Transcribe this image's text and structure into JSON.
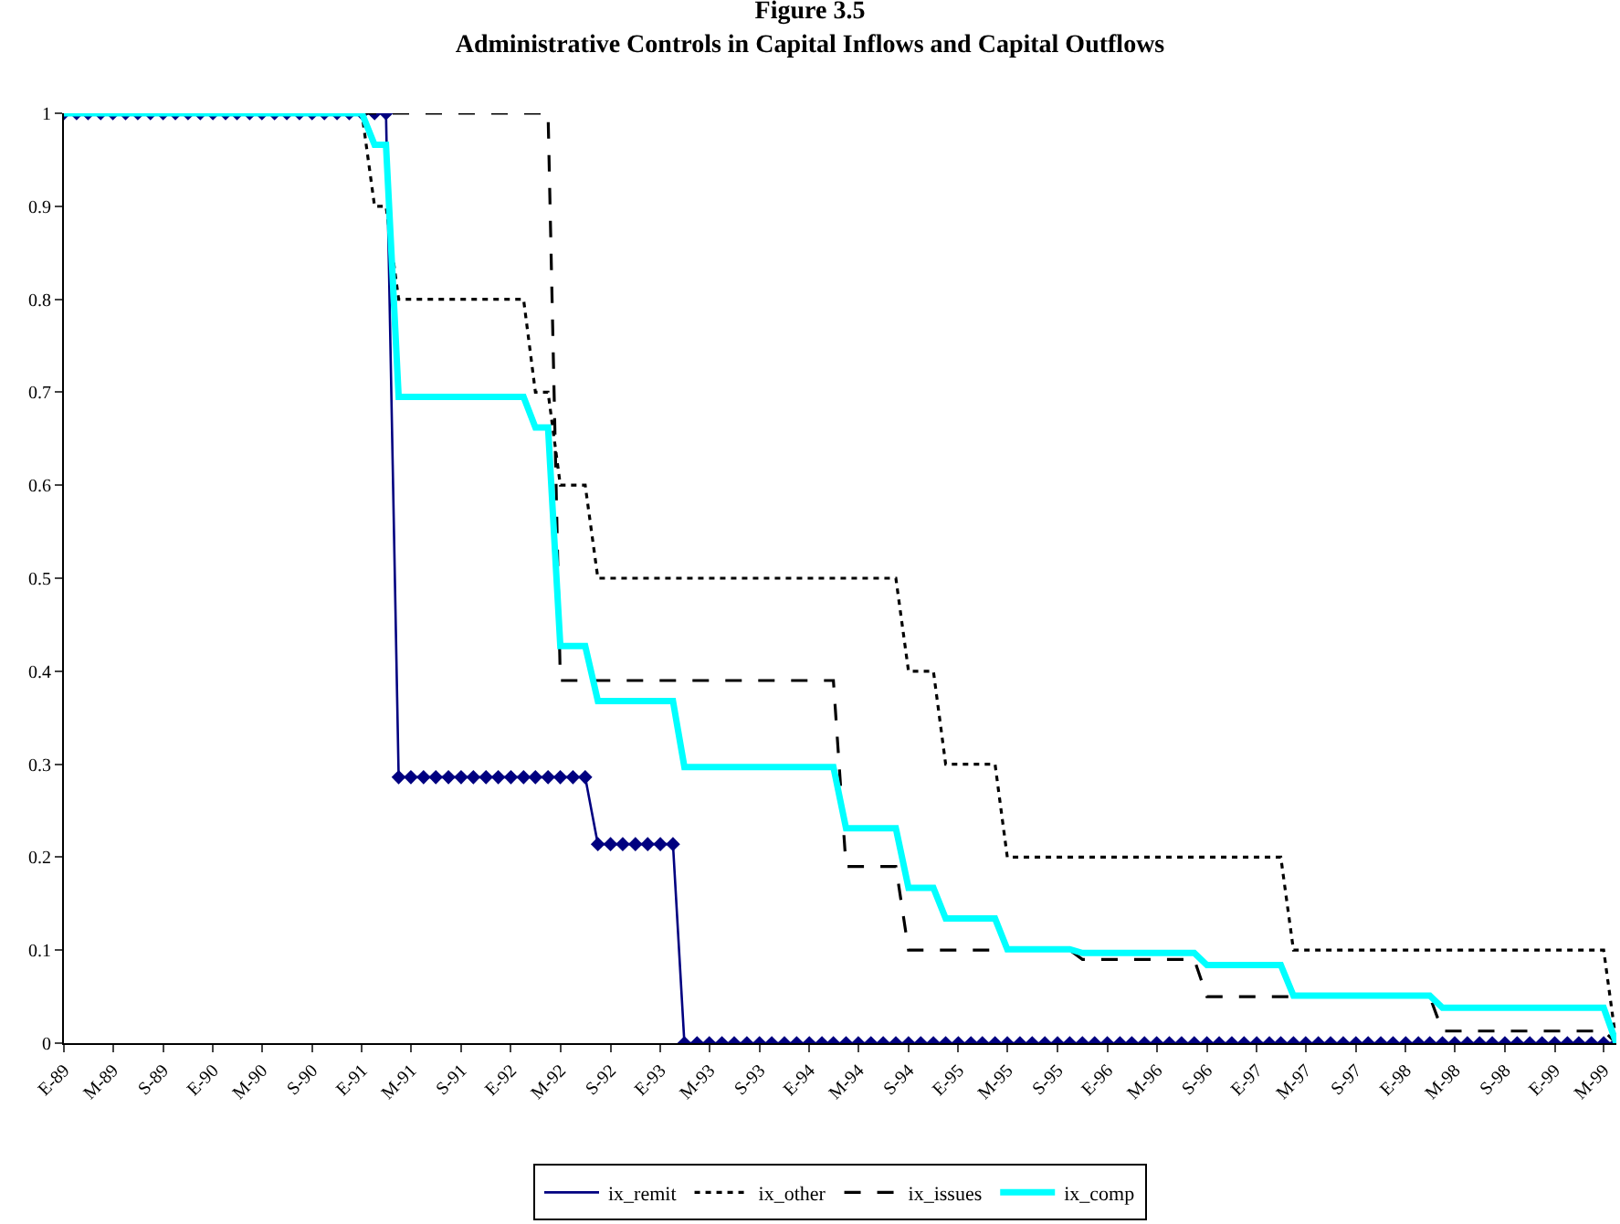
{
  "chart_data": {
    "type": "line",
    "title": "Figure 3.5",
    "subtitle": "Administrative Controls in Capital Inflows and Capital Outflows",
    "x": [
      "1989-01",
      "1989-02",
      "1989-03",
      "1989-04",
      "1989-05",
      "1989-06",
      "1989-07",
      "1989-08",
      "1989-09",
      "1989-10",
      "1989-11",
      "1989-12",
      "1990-01",
      "1990-02",
      "1990-03",
      "1990-04",
      "1990-05",
      "1990-06",
      "1990-07",
      "1990-08",
      "1990-09",
      "1990-10",
      "1990-11",
      "1990-12",
      "1991-01",
      "1991-02",
      "1991-03",
      "1991-04",
      "1991-05",
      "1991-06",
      "1991-07",
      "1991-08",
      "1991-09",
      "1991-10",
      "1991-11",
      "1991-12",
      "1992-01",
      "1992-02",
      "1992-03",
      "1992-04",
      "1992-05",
      "1992-06",
      "1992-07",
      "1992-08",
      "1992-09",
      "1992-10",
      "1992-11",
      "1992-12",
      "1993-01",
      "1993-02",
      "1993-03",
      "1993-04",
      "1993-05",
      "1993-06",
      "1993-07",
      "1993-08",
      "1993-09",
      "1993-10",
      "1993-11",
      "1993-12",
      "1994-01",
      "1994-02",
      "1994-03",
      "1994-04",
      "1994-05",
      "1994-06",
      "1994-07",
      "1994-08",
      "1994-09",
      "1994-10",
      "1994-11",
      "1994-12",
      "1995-01",
      "1995-02",
      "1995-03",
      "1995-04",
      "1995-05",
      "1995-06",
      "1995-07",
      "1995-08",
      "1995-09",
      "1995-10",
      "1995-11",
      "1995-12",
      "1996-01",
      "1996-02",
      "1996-03",
      "1996-04",
      "1996-05",
      "1996-06",
      "1996-07",
      "1996-08",
      "1996-09",
      "1996-10",
      "1996-11",
      "1996-12",
      "1997-01",
      "1997-02",
      "1997-03",
      "1997-04",
      "1997-05",
      "1997-06",
      "1997-07",
      "1997-08",
      "1997-09",
      "1997-10",
      "1997-11",
      "1997-12",
      "1998-01",
      "1998-02",
      "1998-03",
      "1998-04",
      "1998-05",
      "1998-06",
      "1998-07",
      "1998-08",
      "1998-09",
      "1998-10",
      "1998-11",
      "1998-12",
      "1999-01",
      "1999-02",
      "1999-03",
      "1999-04",
      "1999-05",
      "1999-06"
    ],
    "series": [
      {
        "name": "ix_remit",
        "color": "#000080",
        "line_style": "solid",
        "marker": "diamond",
        "values": [
          1,
          1,
          1,
          1,
          1,
          1,
          1,
          1,
          1,
          1,
          1,
          1,
          1,
          1,
          1,
          1,
          1,
          1,
          1,
          1,
          1,
          1,
          1,
          1,
          1,
          1,
          1,
          0.286,
          0.286,
          0.286,
          0.286,
          0.286,
          0.286,
          0.286,
          0.286,
          0.286,
          0.286,
          0.286,
          0.286,
          0.286,
          0.286,
          0.286,
          0.286,
          0.214,
          0.214,
          0.214,
          0.214,
          0.214,
          0.214,
          0.214,
          0,
          0,
          0,
          0,
          0,
          0,
          0,
          0,
          0,
          0,
          0,
          0,
          0,
          0,
          0,
          0,
          0,
          0,
          0,
          0,
          0,
          0,
          0,
          0,
          0,
          0,
          0,
          0,
          0,
          0,
          0,
          0,
          0,
          0,
          0,
          0,
          0,
          0,
          0,
          0,
          0,
          0,
          0,
          0,
          0,
          0,
          0,
          0,
          0,
          0,
          0,
          0,
          0,
          0,
          0,
          0,
          0,
          0,
          0,
          0,
          0,
          0,
          0,
          0,
          0,
          0,
          0,
          0,
          0,
          0,
          0,
          0,
          0,
          0,
          0,
          0
        ]
      },
      {
        "name": "ix_other",
        "color": "#000000",
        "line_style": "dotted",
        "marker": "none",
        "x": [
          "1989-01",
          "1991-01",
          "1991-02",
          "1991-03",
          "1991-04",
          "1992-02",
          "1992-03",
          "1992-04",
          "1992-05",
          "1992-07",
          "1992-08",
          "1994-08",
          "1994-09",
          "1994-11",
          "1994-12",
          "1995-04",
          "1995-05",
          "1997-03",
          "1997-04",
          "1999-05",
          "1999-06"
        ],
        "values": [
          1,
          1,
          0.9,
          0.9,
          0.8,
          0.8,
          0.7,
          0.7,
          0.6,
          0.6,
          0.5,
          0.5,
          0.4,
          0.4,
          0.3,
          0.3,
          0.2,
          0.2,
          0.1,
          0.1,
          0
        ]
      },
      {
        "name": "ix_issues",
        "color": "#000000",
        "line_style": "dashed",
        "marker": "none",
        "x": [
          "1989-01",
          "1992-04",
          "1992-05",
          "1994-03",
          "1994-04",
          "1994-08",
          "1994-09",
          "1995-10",
          "1995-11",
          "1996-08",
          "1996-09",
          "1998-03",
          "1998-04",
          "1999-05",
          "1999-06"
        ],
        "values": [
          1,
          1,
          0.39,
          0.39,
          0.19,
          0.19,
          0.1,
          0.1,
          0.09,
          0.09,
          0.05,
          0.05,
          0.013,
          0.013,
          0
        ]
      },
      {
        "name": "ix_comp",
        "color": "#00ffff",
        "line_style": "solid",
        "marker": "none",
        "x": [
          "1989-01",
          "1991-01",
          "1991-02",
          "1991-03",
          "1991-04",
          "1992-02",
          "1992-03",
          "1992-04",
          "1992-05",
          "1992-07",
          "1992-08",
          "1993-02",
          "1993-03",
          "1994-03",
          "1994-04",
          "1994-08",
          "1994-09",
          "1994-11",
          "1994-12",
          "1995-04",
          "1995-05",
          "1995-10",
          "1995-11",
          "1996-08",
          "1996-09",
          "1997-03",
          "1997-04",
          "1998-03",
          "1998-04",
          "1999-05",
          "1999-06"
        ],
        "values": [
          1,
          1,
          0.966,
          0.966,
          0.695,
          0.695,
          0.662,
          0.662,
          0.427,
          0.427,
          0.368,
          0.368,
          0.297,
          0.297,
          0.231,
          0.231,
          0.167,
          0.167,
          0.134,
          0.134,
          0.101,
          0.101,
          0.097,
          0.097,
          0.084,
          0.084,
          0.051,
          0.051,
          0.038,
          0.038,
          0
        ]
      }
    ],
    "xlim": [
      "1989-01",
      "1999-06"
    ],
    "xticks": [
      {
        "value": "1989-01",
        "label": "E-89"
      },
      {
        "value": "1989-05",
        "label": "M-89"
      },
      {
        "value": "1989-09",
        "label": "S-89"
      },
      {
        "value": "1990-01",
        "label": "E-90"
      },
      {
        "value": "1990-05",
        "label": "M-90"
      },
      {
        "value": "1990-09",
        "label": "S-90"
      },
      {
        "value": "1991-01",
        "label": "E-91"
      },
      {
        "value": "1991-05",
        "label": "M-91"
      },
      {
        "value": "1991-09",
        "label": "S-91"
      },
      {
        "value": "1992-01",
        "label": "E-92"
      },
      {
        "value": "1992-05",
        "label": "M-92"
      },
      {
        "value": "1992-09",
        "label": "S-92"
      },
      {
        "value": "1993-01",
        "label": "E-93"
      },
      {
        "value": "1993-05",
        "label": "M-93"
      },
      {
        "value": "1993-09",
        "label": "S-93"
      },
      {
        "value": "1994-01",
        "label": "E-94"
      },
      {
        "value": "1994-05",
        "label": "M-94"
      },
      {
        "value": "1994-09",
        "label": "S-94"
      },
      {
        "value": "1995-01",
        "label": "E-95"
      },
      {
        "value": "1995-05",
        "label": "M-95"
      },
      {
        "value": "1995-09",
        "label": "S-95"
      },
      {
        "value": "1996-01",
        "label": "E-96"
      },
      {
        "value": "1996-05",
        "label": "M-96"
      },
      {
        "value": "1996-09",
        "label": "S-96"
      },
      {
        "value": "1997-01",
        "label": "E-97"
      },
      {
        "value": "1997-05",
        "label": "M-97"
      },
      {
        "value": "1997-09",
        "label": "S-97"
      },
      {
        "value": "1998-01",
        "label": "E-98"
      },
      {
        "value": "1998-05",
        "label": "M-98"
      },
      {
        "value": "1998-09",
        "label": "S-98"
      },
      {
        "value": "1999-01",
        "label": "E-99"
      },
      {
        "value": "1999-05",
        "label": "M-99"
      }
    ],
    "ylim": [
      0,
      1
    ],
    "yticks": [
      0,
      0.1,
      0.2,
      0.3,
      0.4,
      0.5,
      0.6,
      0.7,
      0.8,
      0.9,
      1
    ],
    "grid": false,
    "legend": "bottom"
  }
}
